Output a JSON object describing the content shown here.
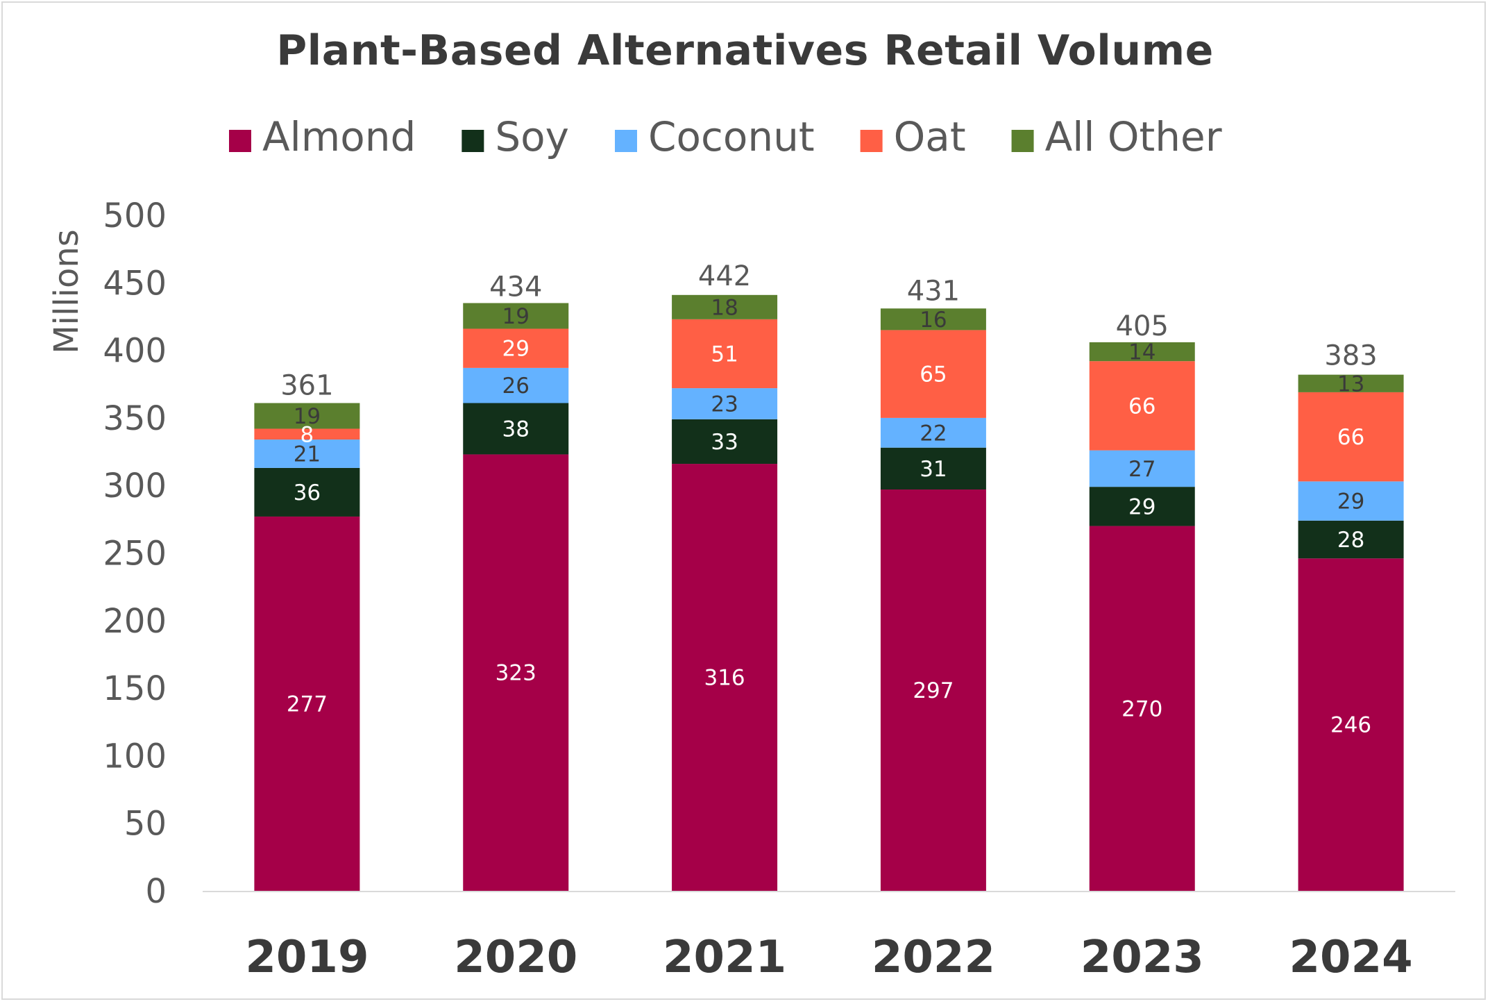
{
  "chart_data": {
    "type": "bar",
    "stacked": true,
    "title": "Plant-Based Alternatives Retail Volume",
    "ylabel": "Millions",
    "xlabel": "",
    "ylim": [
      0,
      500
    ],
    "yticks": [
      "0",
      "50",
      "100",
      "150",
      "200",
      "250",
      "300",
      "350",
      "400",
      "450",
      "500"
    ],
    "legend_position": "top",
    "grid": false,
    "categories": [
      "2019",
      "2020",
      "2021",
      "2022",
      "2023",
      "2024"
    ],
    "series": [
      {
        "name": "Almond",
        "color": "#a50048",
        "label_color": "#ffffff",
        "values": [
          277,
          323,
          316,
          297,
          270,
          246
        ]
      },
      {
        "name": "Soy",
        "color": "#12301a",
        "label_color": "#ffffff",
        "values": [
          36,
          38,
          33,
          31,
          29,
          28
        ]
      },
      {
        "name": "Coconut",
        "color": "#64b2ff",
        "label_color": "#3a3a3a",
        "values": [
          21,
          26,
          23,
          22,
          27,
          29
        ]
      },
      {
        "name": "Oat",
        "color": "#ff5f45",
        "label_color": "#ffffff",
        "values": [
          8,
          29,
          51,
          65,
          66,
          66
        ]
      },
      {
        "name": "All Other",
        "color": "#5b7f2e",
        "label_color": "#3a3a3a",
        "values": [
          19,
          19,
          18,
          16,
          14,
          13
        ]
      }
    ],
    "totals": [
      361,
      434,
      442,
      431,
      405,
      383
    ]
  }
}
